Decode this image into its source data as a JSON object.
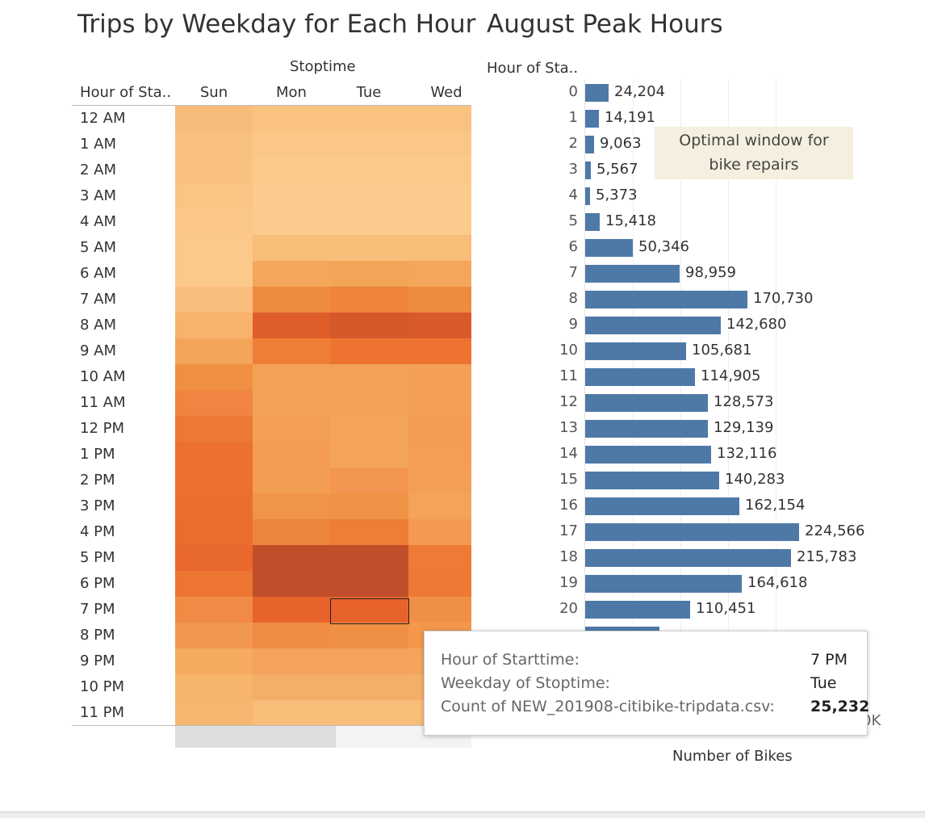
{
  "left_title": "Trips by Weekday for Each Hour",
  "right_title": "August Peak Hours",
  "heatmap": {
    "column_group_label": "Stoptime",
    "row_header": "Hour of Sta..",
    "columns": [
      "Sun",
      "Mon",
      "Tue",
      "Wed"
    ],
    "rows": [
      "12 AM",
      "1 AM",
      "2 AM",
      "3 AM",
      "4 AM",
      "5 AM",
      "6 AM",
      "7 AM",
      "8 AM",
      "9 AM",
      "10 AM",
      "11 AM",
      "12 PM",
      "1 PM",
      "2 PM",
      "3 PM",
      "4 PM",
      "5 PM",
      "6 PM",
      "7 PM",
      "8 PM",
      "9 PM",
      "10 PM",
      "11 PM"
    ],
    "colors": [
      [
        "#f8bc7a",
        "#f9c27f",
        "#f9c27f",
        "#f9c27f"
      ],
      [
        "#f9c17f",
        "#fac786",
        "#fac786",
        "#fac786"
      ],
      [
        "#f9c17f",
        "#fbca8b",
        "#fbca8b",
        "#fbca8b"
      ],
      [
        "#fac483",
        "#fbcb8d",
        "#fbcb8d",
        "#fbcb8d"
      ],
      [
        "#fbc888",
        "#fbcb8d",
        "#fbcb8d",
        "#fbcb8d"
      ],
      [
        "#fbc98a",
        "#f9bd7a",
        "#f9bd7a",
        "#f9bd7a"
      ],
      [
        "#fbc98a",
        "#f3a75a",
        "#f2a457",
        "#f3a75a"
      ],
      [
        "#f9be7c",
        "#ef8b3e",
        "#ee853a",
        "#ef8b3e"
      ],
      [
        "#f7b26c",
        "#df5e2b",
        "#d6592b",
        "#d95b2b"
      ],
      [
        "#f3a55a",
        "#ef7f36",
        "#ee7330",
        "#ee7330"
      ],
      [
        "#f08f42",
        "#f3a156",
        "#f3a156",
        "#f39f55"
      ],
      [
        "#ef8540",
        "#f3a155",
        "#f3a155",
        "#f39f55"
      ],
      [
        "#ec7835",
        "#f39f54",
        "#f4a457",
        "#f39d53"
      ],
      [
        "#ec7130",
        "#f39d53",
        "#f4a458",
        "#f39e54"
      ],
      [
        "#ec7130",
        "#f29d52",
        "#f29650",
        "#f39f54"
      ],
      [
        "#eb6e2f",
        "#f09448",
        "#f09347",
        "#f4a459"
      ],
      [
        "#eb6d2e",
        "#ee853d",
        "#ee7d36",
        "#f29b50"
      ],
      [
        "#e9682d",
        "#c04e2a",
        "#c04e2a",
        "#ef7a35"
      ],
      [
        "#ec7532",
        "#c04e2a",
        "#c04e2a",
        "#ee7934"
      ],
      [
        "#f08a45",
        "#e8632c",
        "#e8632c",
        "#f09046"
      ],
      [
        "#f29751",
        "#f08c43",
        "#f09044",
        "#f2974c"
      ],
      [
        "#f4ab5f",
        "#f3a35b",
        "#f3a35b",
        "#f4a45c"
      ],
      [
        "#f6b46d",
        "#f5ae67",
        "#f5ae67",
        "#f5ae67"
      ],
      [
        "#f7b670",
        "#f8bd78",
        "#f8bd78",
        "#f8bd78"
      ]
    ],
    "selected": {
      "row": "7 PM",
      "col": "Tue"
    }
  },
  "chart_data": {
    "type": "bar",
    "title": "August Peak Hours",
    "ylabel": "Hour of Sta..",
    "xlabel": "Number of Bikes",
    "categories": [
      "0",
      "1",
      "2",
      "3",
      "4",
      "5",
      "6",
      "7",
      "8",
      "9",
      "10",
      "11",
      "12",
      "13",
      "14",
      "15",
      "16",
      "17",
      "18",
      "19",
      "20"
    ],
    "values": [
      24204,
      14191,
      9063,
      5567,
      5373,
      15418,
      50346,
      98959,
      170730,
      142680,
      105681,
      114905,
      128573,
      129139,
      132116,
      140283,
      162154,
      224566,
      215783,
      164618,
      110451
    ],
    "labels": [
      "24,204",
      "14,191",
      "9,063",
      "5,567",
      "5,373",
      "15,418",
      "50,346",
      "98,959",
      "170,730",
      "142,680",
      "105,681",
      "114,905",
      "128,573",
      "129,139",
      "132,116",
      "140,283",
      "162,154",
      "224,566",
      "215,783",
      "164,618",
      "110,451"
    ],
    "partial_bar": {
      "category": "21"
    },
    "axis_tick_fragment": "0K",
    "orientation": "horizontal",
    "color": "#4e79a7"
  },
  "annotation": {
    "text_line1": "Optimal window for",
    "text_line2": "bike repairs"
  },
  "tooltip": {
    "rows": [
      {
        "label": "Hour of Starttime:",
        "value": "7 PM"
      },
      {
        "label": "Weekday of Stoptime:",
        "value": "Tue"
      },
      {
        "label": "Count of NEW_201908-citibike-tripdata.csv:",
        "value": "25,232"
      }
    ]
  }
}
